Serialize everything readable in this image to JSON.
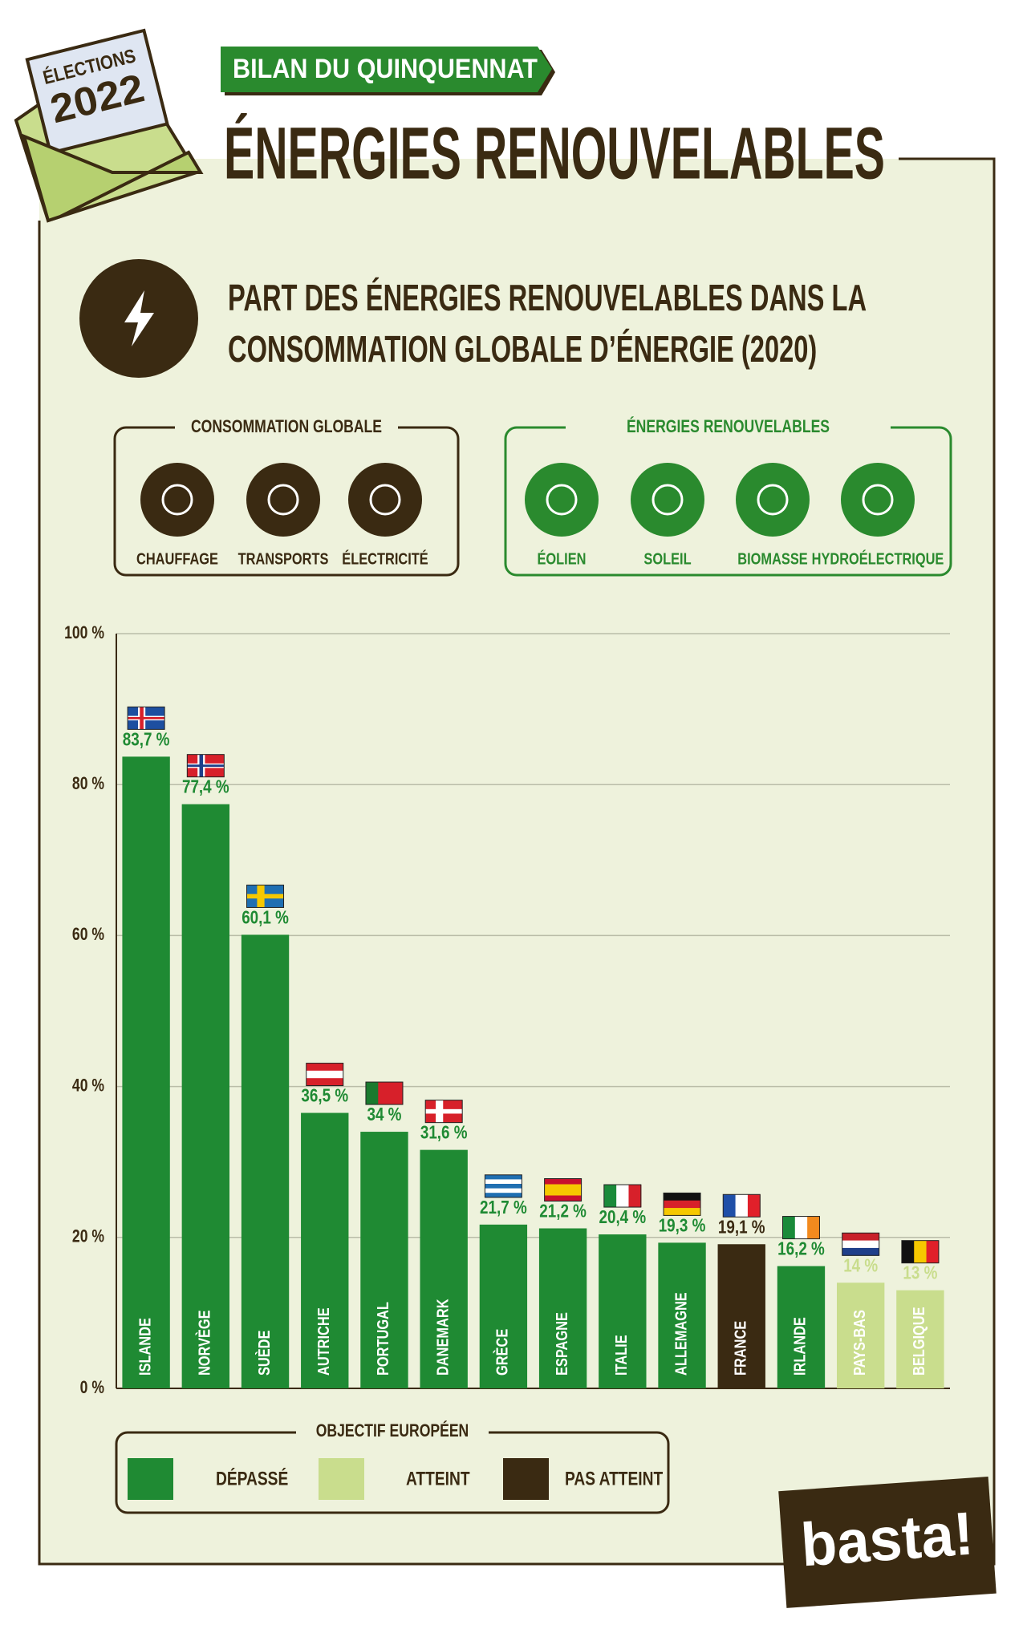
{
  "badge": {
    "line1": "ÉLECTIONS",
    "line2": "2022"
  },
  "kicker": "BILAN DU QUINQUENNAT",
  "headline": "ÉNERGIES RENOUVELABLES",
  "icon_legends": [
    {
      "title": "CONSOMMATION GLOBALE",
      "items": [
        "CHAUFFAGE",
        "TRANSPORTS",
        "ÉLECTRICITÉ"
      ]
    },
    {
      "title": "ÉNERGIES RENOUVELABLES",
      "items": [
        "ÉOLIEN",
        "SOLEIL",
        "BIOMASSE",
        "HYDROÉLECTRIQUE"
      ]
    }
  ],
  "chart_data": {
    "type": "bar",
    "title": "PART DES ÉNERGIES RENOUVELABLES DANS LA CONSOMMATION GLOBALE D’ÉNERGIE (2020)",
    "categories": [
      "ISLANDE",
      "NORVÈGE",
      "SUÈDE",
      "AUTRICHE",
      "PORTUGAL",
      "DANEMARK",
      "GRÈCE",
      "ESPAGNE",
      "ITALIE",
      "ALLEMAGNE",
      "FRANCE",
      "IRLANDE",
      "PAYS-BAS",
      "BELGIQUE"
    ],
    "values": [
      83.7,
      77.4,
      60.1,
      36.5,
      34,
      31.6,
      21.7,
      21.2,
      20.4,
      19.3,
      19.1,
      16.2,
      14,
      13
    ],
    "value_labels": [
      "83,7 %",
      "77,4 %",
      "60,1 %",
      "36,5 %",
      "34 %",
      "31,6 %",
      "21,7 %",
      "21,2 %",
      "20,4 %",
      "19,3 %",
      "19,1 %",
      "16,2 %",
      "14 %",
      "13 %"
    ],
    "colors": [
      "#1f8a33",
      "#1f8a33",
      "#1f8a33",
      "#1f8a33",
      "#1f8a33",
      "#1f8a33",
      "#1f8a33",
      "#1f8a33",
      "#1f8a33",
      "#1f8a33",
      "#3a2a12",
      "#1f8a33",
      "#c9dd8d",
      "#c9dd8d"
    ],
    "ylim": [
      0,
      100
    ],
    "yticks": [
      {
        "value": 0,
        "label": "0 %"
      },
      {
        "value": 20,
        "label": "20 %"
      },
      {
        "value": 40,
        "label": "40 %"
      },
      {
        "value": 60,
        "label": "60 %"
      },
      {
        "value": 80,
        "label": "80 %"
      },
      {
        "value": 100,
        "label": "100 %"
      }
    ],
    "grid": true,
    "legend": {
      "title": "OBJECTIF EUROPÉEN",
      "items": [
        {
          "label": "DÉPASSÉ",
          "color": "#1f8a33"
        },
        {
          "label": "ATTEINT",
          "color": "#c9dd8d"
        },
        {
          "label": "PAS ATTEINT",
          "color": "#3a2a12"
        }
      ]
    }
  },
  "logo": "basta!"
}
